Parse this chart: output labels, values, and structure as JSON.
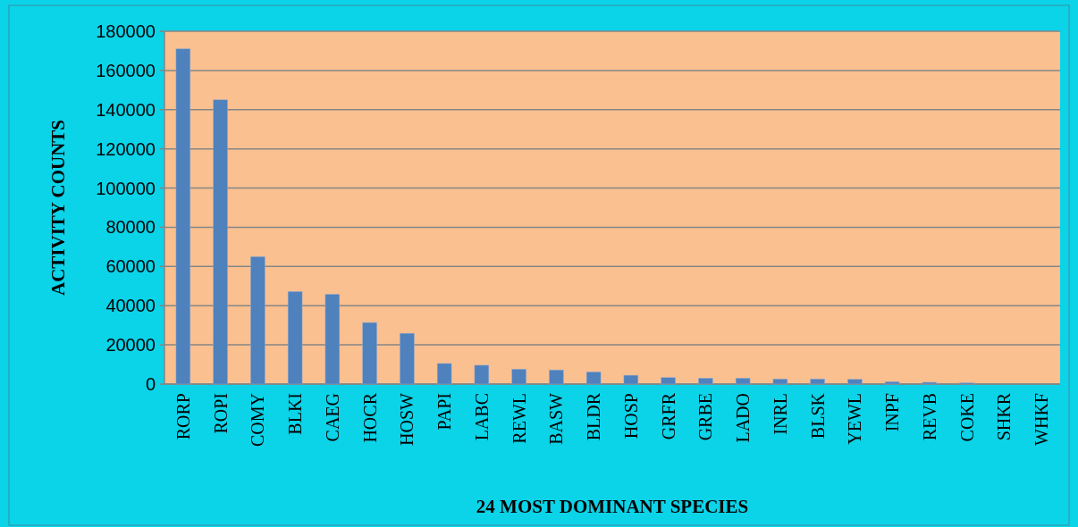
{
  "chart_data": {
    "type": "bar",
    "xlabel": "24 MOST DOMINANT SPECIES",
    "ylabel": "ACTIVITY COUNTS",
    "categories": [
      "RORP",
      "ROPI",
      "COMY",
      "BLKI",
      "CAEG",
      "HOCR",
      "HOSW",
      "PAPI",
      "LABC",
      "REWL",
      "BASW",
      "BLDR",
      "HOSP",
      "GRFR",
      "GRBE",
      "LADO",
      "INRL",
      "BLSK",
      "YEWL",
      "INPF",
      "REVB",
      "COKE",
      "SHKR",
      "WHKF"
    ],
    "values": [
      171000,
      145000,
      65000,
      47200,
      45800,
      31400,
      25900,
      10500,
      9600,
      7600,
      7200,
      6200,
      4500,
      3300,
      3000,
      3000,
      2600,
      2600,
      2400,
      1200,
      900,
      600,
      null,
      null
    ],
    "color": "#4f81bd",
    "ylim": [
      0,
      180000
    ],
    "yticks": [
      0,
      20000,
      40000,
      60000,
      80000,
      100000,
      120000,
      140000,
      160000,
      180000
    ],
    "grid": "y"
  }
}
